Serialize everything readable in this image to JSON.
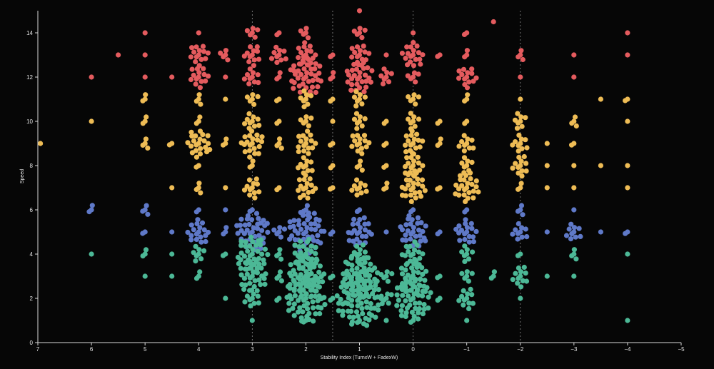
{
  "chart_data": {
    "type": "scatter",
    "subtype": "beeswarm",
    "title": "",
    "xlabel": "Stability Index (TurnxW + FadexW)",
    "ylabel": "Speed",
    "xlim": [
      7,
      -5
    ],
    "ylim": [
      0,
      15
    ],
    "x_ticks": [
      7,
      6,
      5,
      4,
      3,
      2,
      1,
      0,
      -1,
      -2,
      -3,
      -4,
      -5
    ],
    "y_ticks": [
      0,
      2,
      4,
      6,
      8,
      10,
      12,
      14
    ],
    "reference_lines_x": [
      3,
      1.5,
      0,
      -2
    ],
    "grid": false,
    "legend": "none",
    "background": "#060606",
    "colors": {
      "very_fast": "#e45b5e",
      "fast": "#eebc55",
      "mid": "#5f79c8",
      "slow": "#4cb896"
    },
    "speed_groups": [
      {
        "color_key": "slow",
        "min": 0,
        "max": 4.4
      },
      {
        "color_key": "mid",
        "min": 4.4,
        "max": 6.5
      },
      {
        "color_key": "fast",
        "min": 6.5,
        "max": 11.5
      },
      {
        "color_key": "very_fast",
        "min": 11.5,
        "max": 15
      }
    ],
    "clusters": [
      {
        "x": 7,
        "y": 9,
        "n": 1
      },
      {
        "x": 6,
        "y": 12,
        "n": 1
      },
      {
        "x": 6,
        "y": 10,
        "n": 1
      },
      {
        "x": 6,
        "y": 6,
        "n": 3
      },
      {
        "x": 6,
        "y": 4,
        "n": 1
      },
      {
        "x": 5.5,
        "y": 13,
        "n": 1
      },
      {
        "x": 5,
        "y": 14,
        "n": 1
      },
      {
        "x": 5,
        "y": 13,
        "n": 1
      },
      {
        "x": 5,
        "y": 12,
        "n": 1
      },
      {
        "x": 5,
        "y": 11,
        "n": 3
      },
      {
        "x": 5,
        "y": 10,
        "n": 3
      },
      {
        "x": 5,
        "y": 9,
        "n": 4
      },
      {
        "x": 5,
        "y": 6,
        "n": 4
      },
      {
        "x": 5,
        "y": 5,
        "n": 2
      },
      {
        "x": 5,
        "y": 4,
        "n": 3
      },
      {
        "x": 5,
        "y": 3,
        "n": 1
      },
      {
        "x": 4.5,
        "y": 12,
        "n": 1
      },
      {
        "x": 4.5,
        "y": 9,
        "n": 2
      },
      {
        "x": 4.5,
        "y": 7,
        "n": 1
      },
      {
        "x": 4.5,
        "y": 5,
        "n": 1
      },
      {
        "x": 4.5,
        "y": 4,
        "n": 1
      },
      {
        "x": 4.5,
        "y": 3,
        "n": 1
      },
      {
        "x": 4,
        "y": 14,
        "n": 1
      },
      {
        "x": 4,
        "y": 13,
        "n": 14
      },
      {
        "x": 4,
        "y": 12,
        "n": 14
      },
      {
        "x": 4,
        "y": 11,
        "n": 4
      },
      {
        "x": 4,
        "y": 10,
        "n": 3
      },
      {
        "x": 4,
        "y": 9,
        "n": 22
      },
      {
        "x": 4,
        "y": 8,
        "n": 2
      },
      {
        "x": 4,
        "y": 7,
        "n": 4
      },
      {
        "x": 4,
        "y": 6,
        "n": 2
      },
      {
        "x": 4,
        "y": 5,
        "n": 18
      },
      {
        "x": 4,
        "y": 4,
        "n": 8
      },
      {
        "x": 4,
        "y": 3,
        "n": 3
      },
      {
        "x": 3.5,
        "y": 13,
        "n": 5
      },
      {
        "x": 3.5,
        "y": 12,
        "n": 1
      },
      {
        "x": 3.5,
        "y": 11,
        "n": 1
      },
      {
        "x": 3.5,
        "y": 9,
        "n": 3
      },
      {
        "x": 3.5,
        "y": 7,
        "n": 1
      },
      {
        "x": 3.5,
        "y": 6,
        "n": 1
      },
      {
        "x": 3.5,
        "y": 5,
        "n": 3
      },
      {
        "x": 3.5,
        "y": 4,
        "n": 2
      },
      {
        "x": 3.5,
        "y": 2,
        "n": 1
      },
      {
        "x": 3,
        "y": 14,
        "n": 6
      },
      {
        "x": 3,
        "y": 13,
        "n": 12
      },
      {
        "x": 3,
        "y": 12,
        "n": 10
      },
      {
        "x": 3,
        "y": 11,
        "n": 6
      },
      {
        "x": 3,
        "y": 10,
        "n": 10
      },
      {
        "x": 3,
        "y": 9,
        "n": 20
      },
      {
        "x": 3,
        "y": 8,
        "n": 3
      },
      {
        "x": 3,
        "y": 7,
        "n": 12
      },
      {
        "x": 3,
        "y": 6,
        "n": 2
      },
      {
        "x": 3,
        "y": 5,
        "n": 40
      },
      {
        "x": 3,
        "y": 4,
        "n": 36
      },
      {
        "x": 3,
        "y": 3,
        "n": 30
      },
      {
        "x": 3,
        "y": 2,
        "n": 10
      },
      {
        "x": 3,
        "y": 1,
        "n": 1
      },
      {
        "x": 2.5,
        "y": 14,
        "n": 2
      },
      {
        "x": 2.5,
        "y": 13,
        "n": 10
      },
      {
        "x": 2.5,
        "y": 12,
        "n": 3
      },
      {
        "x": 2.5,
        "y": 11,
        "n": 2
      },
      {
        "x": 2.5,
        "y": 10,
        "n": 2
      },
      {
        "x": 2.5,
        "y": 9,
        "n": 4
      },
      {
        "x": 2.5,
        "y": 7,
        "n": 2
      },
      {
        "x": 2.5,
        "y": 5,
        "n": 6
      },
      {
        "x": 2.5,
        "y": 4,
        "n": 4
      },
      {
        "x": 2.5,
        "y": 3,
        "n": 4
      },
      {
        "x": 2.5,
        "y": 2,
        "n": 2
      },
      {
        "x": 2,
        "y": 14,
        "n": 5
      },
      {
        "x": 2,
        "y": 13,
        "n": 16
      },
      {
        "x": 2,
        "y": 12,
        "n": 40
      },
      {
        "x": 2,
        "y": 11,
        "n": 8
      },
      {
        "x": 2,
        "y": 10,
        "n": 6
      },
      {
        "x": 2,
        "y": 9,
        "n": 16
      },
      {
        "x": 2,
        "y": 8,
        "n": 10
      },
      {
        "x": 2,
        "y": 7,
        "n": 16
      },
      {
        "x": 2,
        "y": 6,
        "n": 4
      },
      {
        "x": 2,
        "y": 5,
        "n": 48
      },
      {
        "x": 2,
        "y": 4,
        "n": 26
      },
      {
        "x": 2,
        "y": 3,
        "n": 48
      },
      {
        "x": 2,
        "y": 2,
        "n": 60
      },
      {
        "x": 2,
        "y": 1,
        "n": 2
      },
      {
        "x": 1.5,
        "y": 13,
        "n": 2
      },
      {
        "x": 1.5,
        "y": 12,
        "n": 3
      },
      {
        "x": 1.5,
        "y": 11,
        "n": 2
      },
      {
        "x": 1.5,
        "y": 10,
        "n": 1
      },
      {
        "x": 1.5,
        "y": 9,
        "n": 2
      },
      {
        "x": 1.5,
        "y": 8,
        "n": 2
      },
      {
        "x": 1.5,
        "y": 7,
        "n": 2
      },
      {
        "x": 1.5,
        "y": 5,
        "n": 2
      },
      {
        "x": 1.5,
        "y": 3,
        "n": 2
      },
      {
        "x": 1.5,
        "y": 2,
        "n": 2
      },
      {
        "x": 1,
        "y": 15,
        "n": 1
      },
      {
        "x": 1,
        "y": 14,
        "n": 6
      },
      {
        "x": 1,
        "y": 13,
        "n": 14
      },
      {
        "x": 1,
        "y": 12,
        "n": 28
      },
      {
        "x": 1,
        "y": 11,
        "n": 8
      },
      {
        "x": 1,
        "y": 10,
        "n": 8
      },
      {
        "x": 1,
        "y": 9,
        "n": 14
      },
      {
        "x": 1,
        "y": 8,
        "n": 4
      },
      {
        "x": 1,
        "y": 7,
        "n": 10
      },
      {
        "x": 1,
        "y": 6,
        "n": 2
      },
      {
        "x": 1,
        "y": 5,
        "n": 24
      },
      {
        "x": 1,
        "y": 4,
        "n": 12
      },
      {
        "x": 1,
        "y": 3,
        "n": 50
      },
      {
        "x": 1,
        "y": 2,
        "n": 80
      },
      {
        "x": 1,
        "y": 1,
        "n": 2
      },
      {
        "x": 0.5,
        "y": 13,
        "n": 1
      },
      {
        "x": 0.5,
        "y": 12,
        "n": 8
      },
      {
        "x": 0.5,
        "y": 10,
        "n": 2
      },
      {
        "x": 0.5,
        "y": 9,
        "n": 2
      },
      {
        "x": 0.5,
        "y": 8,
        "n": 2
      },
      {
        "x": 0.5,
        "y": 7,
        "n": 3
      },
      {
        "x": 0.5,
        "y": 5,
        "n": 1
      },
      {
        "x": 0.5,
        "y": 3,
        "n": 6
      },
      {
        "x": 0.5,
        "y": 2,
        "n": 6
      },
      {
        "x": 0.5,
        "y": 1,
        "n": 1
      },
      {
        "x": 0,
        "y": 14,
        "n": 1
      },
      {
        "x": 0,
        "y": 13,
        "n": 18
      },
      {
        "x": 0,
        "y": 12,
        "n": 6
      },
      {
        "x": 0,
        "y": 11,
        "n": 6
      },
      {
        "x": 0,
        "y": 10,
        "n": 8
      },
      {
        "x": 0,
        "y": 9,
        "n": 16
      },
      {
        "x": 0,
        "y": 8,
        "n": 16
      },
      {
        "x": 0,
        "y": 7,
        "n": 24
      },
      {
        "x": 0,
        "y": 6,
        "n": 2
      },
      {
        "x": 0,
        "y": 5,
        "n": 30
      },
      {
        "x": 0,
        "y": 4,
        "n": 18
      },
      {
        "x": 0,
        "y": 3,
        "n": 28
      },
      {
        "x": 0,
        "y": 2,
        "n": 50
      },
      {
        "x": 0,
        "y": 1,
        "n": 2
      },
      {
        "x": -0.5,
        "y": 13,
        "n": 2
      },
      {
        "x": -0.5,
        "y": 10,
        "n": 2
      },
      {
        "x": -0.5,
        "y": 9,
        "n": 3
      },
      {
        "x": -0.5,
        "y": 7,
        "n": 2
      },
      {
        "x": -0.5,
        "y": 5,
        "n": 2
      },
      {
        "x": -0.5,
        "y": 3,
        "n": 2
      },
      {
        "x": -0.5,
        "y": 2,
        "n": 2
      },
      {
        "x": -1,
        "y": 14,
        "n": 2
      },
      {
        "x": -1,
        "y": 13,
        "n": 3
      },
      {
        "x": -1,
        "y": 12,
        "n": 14
      },
      {
        "x": -1,
        "y": 11,
        "n": 3
      },
      {
        "x": -1,
        "y": 10,
        "n": 2
      },
      {
        "x": -1,
        "y": 9,
        "n": 10
      },
      {
        "x": -1,
        "y": 8,
        "n": 8
      },
      {
        "x": -1,
        "y": 7,
        "n": 24
      },
      {
        "x": -1,
        "y": 6,
        "n": 2
      },
      {
        "x": -1,
        "y": 5,
        "n": 18
      },
      {
        "x": -1,
        "y": 4,
        "n": 8
      },
      {
        "x": -1,
        "y": 3,
        "n": 6
      },
      {
        "x": -1,
        "y": 2,
        "n": 12
      },
      {
        "x": -1,
        "y": 1,
        "n": 1
      },
      {
        "x": -1.5,
        "y": 14.5,
        "n": 1
      },
      {
        "x": -1.5,
        "y": 3,
        "n": 3
      },
      {
        "x": -2,
        "y": 13,
        "n": 4
      },
      {
        "x": -2,
        "y": 12,
        "n": 1
      },
      {
        "x": -2,
        "y": 11,
        "n": 1
      },
      {
        "x": -2,
        "y": 10,
        "n": 8
      },
      {
        "x": -2,
        "y": 9,
        "n": 10
      },
      {
        "x": -2,
        "y": 8,
        "n": 12
      },
      {
        "x": -2,
        "y": 7,
        "n": 3
      },
      {
        "x": -2,
        "y": 6,
        "n": 4
      },
      {
        "x": -2,
        "y": 5,
        "n": 10
      },
      {
        "x": -2,
        "y": 4,
        "n": 2
      },
      {
        "x": -2,
        "y": 3,
        "n": 12
      },
      {
        "x": -2,
        "y": 2,
        "n": 1
      },
      {
        "x": -2.5,
        "y": 9,
        "n": 1
      },
      {
        "x": -2.5,
        "y": 8,
        "n": 1
      },
      {
        "x": -2.5,
        "y": 7,
        "n": 1
      },
      {
        "x": -2.5,
        "y": 5,
        "n": 1
      },
      {
        "x": -2.5,
        "y": 3,
        "n": 1
      },
      {
        "x": -3,
        "y": 13,
        "n": 1
      },
      {
        "x": -3,
        "y": 12,
        "n": 1
      },
      {
        "x": -3,
        "y": 10,
        "n": 4
      },
      {
        "x": -3,
        "y": 9,
        "n": 2
      },
      {
        "x": -3,
        "y": 8,
        "n": 1
      },
      {
        "x": -3,
        "y": 7,
        "n": 1
      },
      {
        "x": -3,
        "y": 6,
        "n": 1
      },
      {
        "x": -3,
        "y": 5,
        "n": 10
      },
      {
        "x": -3,
        "y": 4,
        "n": 4
      },
      {
        "x": -3,
        "y": 3,
        "n": 1
      },
      {
        "x": -3.5,
        "y": 11,
        "n": 1
      },
      {
        "x": -3.5,
        "y": 8,
        "n": 1
      },
      {
        "x": -3.5,
        "y": 5,
        "n": 1
      },
      {
        "x": -4,
        "y": 14,
        "n": 1
      },
      {
        "x": -4,
        "y": 13,
        "n": 1
      },
      {
        "x": -4,
        "y": 11,
        "n": 2
      },
      {
        "x": -4,
        "y": 10,
        "n": 1
      },
      {
        "x": -4,
        "y": 8,
        "n": 1
      },
      {
        "x": -4,
        "y": 7,
        "n": 1
      },
      {
        "x": -4,
        "y": 5,
        "n": 2
      },
      {
        "x": -4,
        "y": 4,
        "n": 1
      },
      {
        "x": -4,
        "y": 1,
        "n": 1
      }
    ]
  }
}
